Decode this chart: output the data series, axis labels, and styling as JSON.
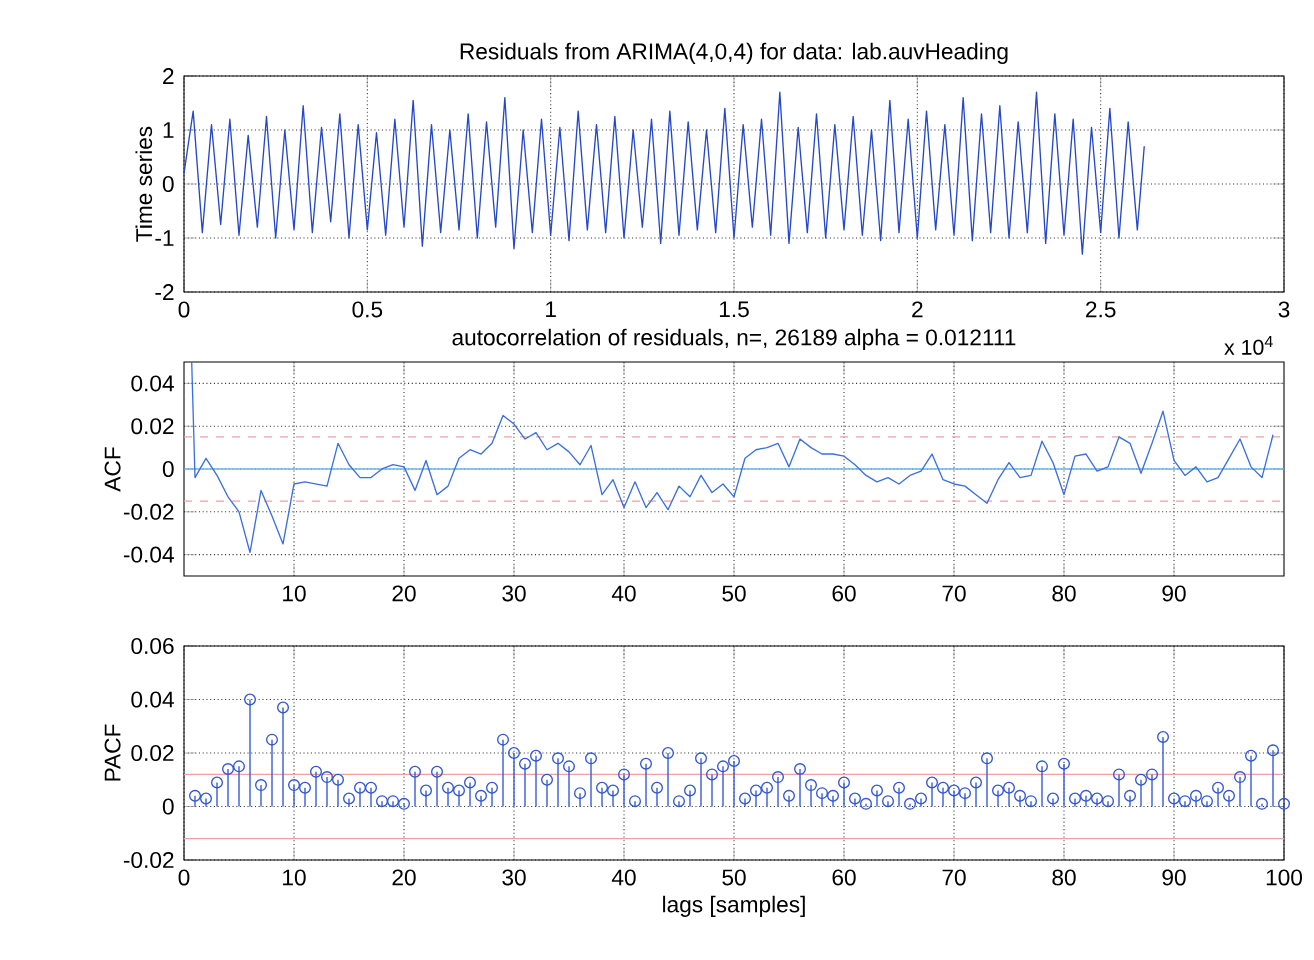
{
  "chart_data": [
    {
      "type": "line",
      "title": "Residuals from ARIMA(4,0,4) for data: lab.auvHeading",
      "ylabel": "Time series",
      "color": "#2548c8",
      "marker": "none",
      "line_style": "solid",
      "grid": true,
      "xlim": [
        0,
        3
      ],
      "xticks": [
        0,
        0.5,
        1,
        1.5,
        2,
        2.5,
        3
      ],
      "ylim": [
        -2,
        2
      ],
      "yticks": [
        -2,
        -1,
        0,
        1,
        2
      ],
      "annotations": [
        "x 10$^{4}$"
      ],
      "x": [
        0,
        0.025,
        0.05,
        0.075,
        0.1,
        0.125,
        0.15,
        0.175,
        0.2,
        0.225,
        0.25,
        0.275,
        0.3,
        0.325,
        0.35,
        0.375,
        0.4,
        0.425,
        0.45,
        0.475,
        0.5,
        0.525,
        0.55,
        0.575,
        0.6,
        0.625,
        0.65,
        0.675,
        0.7,
        0.725,
        0.75,
        0.775,
        0.8,
        0.825,
        0.85,
        0.875,
        0.9,
        0.925,
        0.95,
        0.975,
        1,
        1.025,
        1.05,
        1.075,
        1.1,
        1.125,
        1.15,
        1.175,
        1.2,
        1.225,
        1.25,
        1.275,
        1.3,
        1.325,
        1.35,
        1.375,
        1.4,
        1.425,
        1.45,
        1.475,
        1.5,
        1.525,
        1.55,
        1.575,
        1.6,
        1.625,
        1.65,
        1.675,
        1.7,
        1.725,
        1.75,
        1.775,
        1.8,
        1.825,
        1.85,
        1.875,
        1.9,
        1.925,
        1.95,
        1.975,
        2,
        2.025,
        2.05,
        2.075,
        2.1,
        2.125,
        2.15,
        2.175,
        2.2,
        2.225,
        2.25,
        2.275,
        2.3,
        2.325,
        2.35,
        2.375,
        2.4,
        2.425,
        2.45,
        2.475,
        2.5,
        2.525,
        2.55,
        2.575,
        2.6,
        2.6189
      ],
      "values": [
        0.2,
        1.35,
        -0.9,
        1.1,
        -0.75,
        1.2,
        -0.95,
        0.9,
        -0.8,
        1.25,
        -1.0,
        1.0,
        -0.85,
        1.45,
        -0.9,
        1.05,
        -0.7,
        1.3,
        -1.0,
        1.1,
        -0.85,
        0.95,
        -0.95,
        1.2,
        -0.8,
        1.55,
        -1.15,
        1.1,
        -0.9,
        1.0,
        -0.85,
        1.3,
        -1.0,
        1.15,
        -0.8,
        1.6,
        -1.2,
        1.0,
        -0.9,
        1.2,
        -0.95,
        1.05,
        -1.05,
        1.35,
        -0.85,
        1.1,
        -0.9,
        1.25,
        -1.0,
        1.0,
        -0.8,
        1.2,
        -1.1,
        1.35,
        -0.95,
        1.15,
        -0.85,
        1.0,
        -0.9,
        1.4,
        -1.0,
        1.1,
        -0.8,
        1.2,
        -0.95,
        1.7,
        -1.1,
        1.05,
        -0.9,
        1.3,
        -1.0,
        1.1,
        -0.85,
        1.25,
        -0.95,
        1.0,
        -1.05,
        1.55,
        -0.9,
        1.2,
        -1.0,
        1.35,
        -0.85,
        1.1,
        -0.95,
        1.6,
        -1.05,
        1.3,
        -0.9,
        1.45,
        -1.0,
        1.15,
        -0.9,
        1.7,
        -1.1,
        1.3,
        -0.95,
        1.2,
        -1.3,
        1.05,
        -0.9,
        1.4,
        -1.0,
        1.15,
        -0.85,
        0.7
      ]
    },
    {
      "type": "line",
      "title": "autocorrelation of residuals, n=, 26189 alpha = 0.012111",
      "ylabel": "ACF",
      "color": "#3b6fe0",
      "marker": "none",
      "line_style": "solid",
      "grid": true,
      "xlim": [
        0,
        100
      ],
      "xticks": [
        10,
        20,
        30,
        40,
        50,
        60,
        70,
        80,
        90
      ],
      "ylim": [
        -0.05,
        0.05
      ],
      "yticks": [
        -0.04,
        -0.02,
        0,
        0.02,
        0.04
      ],
      "ref_lines": [
        {
          "axis": "y",
          "value": 0.015,
          "color": "#f0a0a0",
          "line_style": "dashed"
        },
        {
          "axis": "y",
          "value": -0.015,
          "color": "#f0a0a0",
          "line_style": "dashed"
        },
        {
          "axis": "y",
          "value": 0,
          "color": "#66bbee",
          "line_style": "solid"
        }
      ],
      "x": [
        0.7,
        1,
        2,
        3,
        4,
        5,
        6,
        7,
        8,
        9,
        10,
        11,
        12,
        13,
        14,
        15,
        16,
        17,
        18,
        19,
        20,
        21,
        22,
        23,
        24,
        25,
        26,
        27,
        28,
        29,
        30,
        31,
        32,
        33,
        34,
        35,
        36,
        37,
        38,
        39,
        40,
        41,
        42,
        43,
        44,
        45,
        46,
        47,
        48,
        49,
        50,
        51,
        52,
        53,
        54,
        55,
        56,
        57,
        58,
        59,
        60,
        61,
        62,
        63,
        64,
        65,
        66,
        67,
        68,
        69,
        70,
        71,
        72,
        73,
        74,
        75,
        76,
        77,
        78,
        79,
        80,
        81,
        82,
        83,
        84,
        85,
        86,
        87,
        88,
        89,
        90,
        91,
        92,
        93,
        94,
        95,
        96,
        97,
        98,
        99
      ],
      "values": [
        0.05,
        -0.004,
        0.005,
        -0.003,
        -0.013,
        -0.02,
        -0.039,
        -0.01,
        -0.022,
        -0.035,
        -0.007,
        -0.006,
        -0.007,
        -0.008,
        0.012,
        0.002,
        -0.004,
        -0.004,
        0.0,
        0.002,
        0.001,
        -0.01,
        0.004,
        -0.012,
        -0.008,
        0.005,
        0.009,
        0.007,
        0.012,
        0.025,
        0.021,
        0.014,
        0.017,
        0.009,
        0.012,
        0.008,
        0.002,
        0.011,
        -0.012,
        -0.005,
        -0.018,
        -0.006,
        -0.018,
        -0.011,
        -0.019,
        -0.008,
        -0.013,
        -0.003,
        -0.011,
        -0.007,
        -0.013,
        0.005,
        0.009,
        0.01,
        0.012,
        0.001,
        0.014,
        0.01,
        0.007,
        0.007,
        0.006,
        0.002,
        -0.003,
        -0.006,
        -0.004,
        -0.007,
        -0.003,
        -0.001,
        0.007,
        -0.005,
        -0.007,
        -0.008,
        -0.012,
        -0.016,
        -0.005,
        0.003,
        -0.004,
        -0.003,
        0.013,
        0.003,
        -0.012,
        0.006,
        0.007,
        -0.001,
        0.001,
        0.015,
        0.012,
        -0.002,
        0.012,
        0.027,
        0.004,
        -0.003,
        0.001,
        -0.006,
        -0.004,
        0.005,
        0.014,
        0.001,
        -0.004,
        0.016
      ]
    },
    {
      "type": "lollipop",
      "xlabel": "lags [samples]",
      "ylabel": "PACF",
      "color": "#2f55d4",
      "marker": "circle",
      "grid": true,
      "xlim": [
        0,
        100
      ],
      "xticks": [
        0,
        10,
        20,
        30,
        40,
        50,
        60,
        70,
        80,
        90,
        100
      ],
      "ylim": [
        -0.02,
        0.06
      ],
      "yticks": [
        -0.02,
        0,
        0.02,
        0.04,
        0.06
      ],
      "ref_lines": [
        {
          "axis": "y",
          "value": 0.012,
          "color": "#f0a0a0",
          "line_style": "solid"
        },
        {
          "axis": "y",
          "value": -0.012,
          "color": "#f0a0a0",
          "line_style": "solid"
        }
      ],
      "x": [
        1,
        2,
        3,
        4,
        5,
        6,
        7,
        8,
        9,
        10,
        11,
        12,
        13,
        14,
        15,
        16,
        17,
        18,
        19,
        20,
        21,
        22,
        23,
        24,
        25,
        26,
        27,
        28,
        29,
        30,
        31,
        32,
        33,
        34,
        35,
        36,
        37,
        38,
        39,
        40,
        41,
        42,
        43,
        44,
        45,
        46,
        47,
        48,
        49,
        50,
        51,
        52,
        53,
        54,
        55,
        56,
        57,
        58,
        59,
        60,
        61,
        62,
        63,
        64,
        65,
        66,
        67,
        68,
        69,
        70,
        71,
        72,
        73,
        74,
        75,
        76,
        77,
        78,
        79,
        80,
        81,
        82,
        83,
        84,
        85,
        86,
        87,
        88,
        89,
        90,
        91,
        92,
        93,
        94,
        95,
        96,
        97,
        98,
        99,
        100
      ],
      "values": [
        0.004,
        0.003,
        0.009,
        0.014,
        0.015,
        0.04,
        0.008,
        0.025,
        0.037,
        0.008,
        0.007,
        0.013,
        0.011,
        0.01,
        0.003,
        0.007,
        0.007,
        0.002,
        0.002,
        0.001,
        0.013,
        0.006,
        0.013,
        0.007,
        0.006,
        0.009,
        0.004,
        0.007,
        0.025,
        0.02,
        0.016,
        0.019,
        0.01,
        0.018,
        0.015,
        0.005,
        0.018,
        0.007,
        0.006,
        0.012,
        0.002,
        0.016,
        0.007,
        0.02,
        0.002,
        0.006,
        0.018,
        0.012,
        0.015,
        0.017,
        0.003,
        0.006,
        0.007,
        0.011,
        0.004,
        0.014,
        0.008,
        0.005,
        0.004,
        0.009,
        0.003,
        0.001,
        0.006,
        0.002,
        0.007,
        0.001,
        0.003,
        0.009,
        0.007,
        0.006,
        0.005,
        0.009,
        0.018,
        0.006,
        0.007,
        0.004,
        0.002,
        0.015,
        0.003,
        0.016,
        0.003,
        0.004,
        0.003,
        0.002,
        0.012,
        0.004,
        0.01,
        0.012,
        0.026,
        0.003,
        0.002,
        0.004,
        0.002,
        0.007,
        0.004,
        0.011,
        0.019,
        0.001,
        0.021,
        0.001
      ]
    }
  ]
}
